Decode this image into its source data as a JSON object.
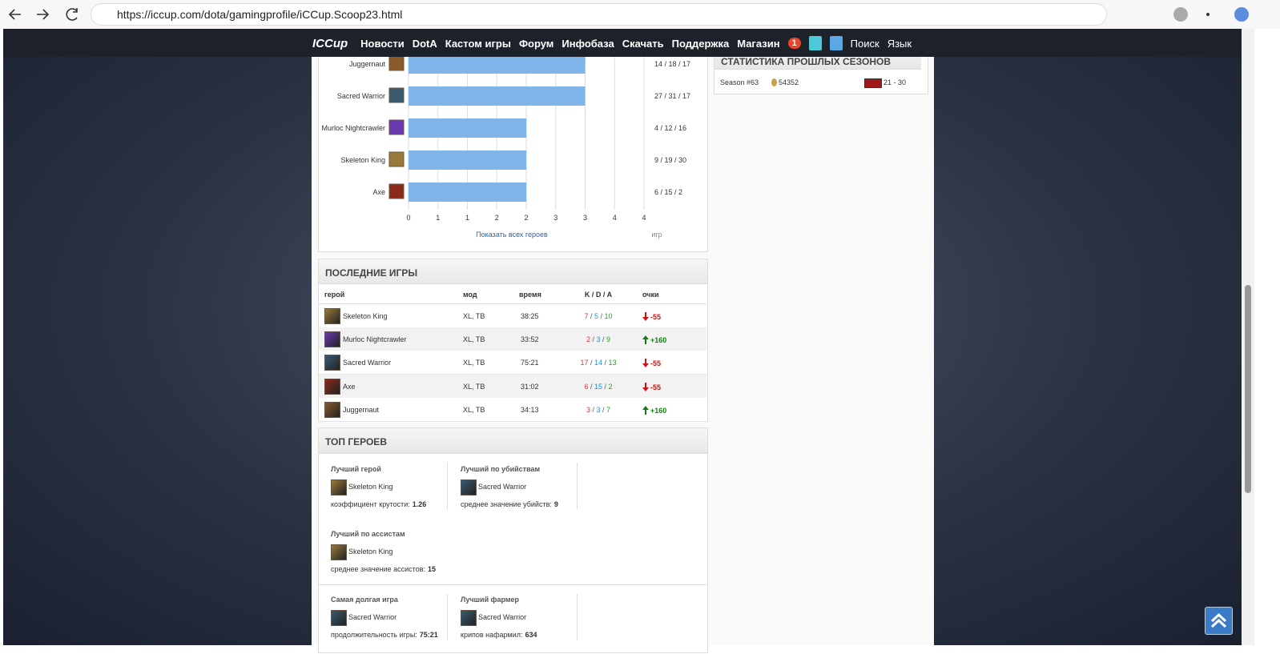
{
  "browser": {
    "url": "https://iccup.com/dota/gamingprofile/iCCup.Scoop23.html"
  },
  "nav": {
    "logo": "ICCup",
    "items": [
      "Новости",
      "DotA",
      "Кастом игры",
      "Форум",
      "Инфобаза",
      "Скачать",
      "Поддержка",
      "Магазин"
    ],
    "badge": "1",
    "search": "Поиск",
    "language": "Язык"
  },
  "hero_chart": {
    "heroes": [
      "Juggernaut",
      "Sacred Warrior",
      "Murloc Nightcrawler",
      "Skeleton King",
      "Axe"
    ],
    "values": [
      3,
      3,
      2,
      2,
      2
    ],
    "kda": [
      "14 / 18 / 17",
      "27 / 31 / 17",
      "4 / 12 / 16",
      "9 / 19 / 30",
      "6 / 15 / 2"
    ],
    "xlim": [
      0,
      4
    ],
    "xticks": [
      0,
      {
        "value": 0.5,
        "label": "1"
      },
      1,
      {
        "value": 1.5,
        "label": "2"
      },
      2,
      {
        "value": 2.5,
        "label": "3"
      },
      3,
      {
        "value": 3.5,
        "label": "4"
      },
      4
    ],
    "link": "Показать всех героев",
    "unit": "игр"
  },
  "past_seasons": {
    "title": "СТАТИСТИКА ПРОШЛЫХ СЕЗОНОВ",
    "rows": [
      {
        "season": "Season #63",
        "points": "54352",
        "rank": "21 - 30"
      }
    ]
  },
  "recent_games": {
    "title": "ПОСЛЕДНИЕ ИГРЫ",
    "columns": [
      "герой",
      "мод",
      "время",
      "K / D / A",
      "очки"
    ],
    "kda_separator": " / ",
    "rows": [
      {
        "hero": "Skeleton King",
        "mode": "XL, TB",
        "time": "38:25",
        "k": "7",
        "d": "5",
        "a": "10",
        "points": "-55"
      },
      {
        "hero": "Murloc Nightcrawler",
        "mode": "XL, TB",
        "time": "33:52",
        "k": "2",
        "d": "3",
        "a": "9",
        "points": "+160"
      },
      {
        "hero": "Sacred Warrior",
        "mode": "XL, TB",
        "time": "75:21",
        "k": "17",
        "d": "14",
        "a": "13",
        "points": "-55"
      },
      {
        "hero": "Axe",
        "mode": "XL, TB",
        "time": "31:02",
        "k": "6",
        "d": "15",
        "a": "2",
        "points": "-55"
      },
      {
        "hero": "Juggernaut",
        "mode": "XL, TB",
        "time": "34:13",
        "k": "3",
        "d": "3",
        "a": "7",
        "points": "+160"
      }
    ]
  },
  "top_heroes": {
    "title": "ТОП ГЕРОЕВ",
    "cards": [
      {
        "label": "Лучший герой",
        "hero": "Skeleton King",
        "stat_label": "коэффициент крутости:",
        "stat_value": "1.26"
      },
      {
        "label": "Лучший по убийствам",
        "hero": "Sacred Warrior",
        "stat_label": "среднее значение убийств:",
        "stat_value": "9"
      },
      {
        "label": "Лучший по ассистам",
        "hero": "Skeleton King",
        "stat_label": "среднее значение ассистов:",
        "stat_value": "15"
      },
      {
        "label": "Самая долгая игра",
        "hero": "Sacred Warrior",
        "stat_label": "продолжительность игры:",
        "stat_value": "75:21"
      },
      {
        "label": "Лучший фармер",
        "hero": "Sacred Warrior",
        "stat_label": "крипов нафармил:",
        "stat_value": "634"
      }
    ]
  }
}
